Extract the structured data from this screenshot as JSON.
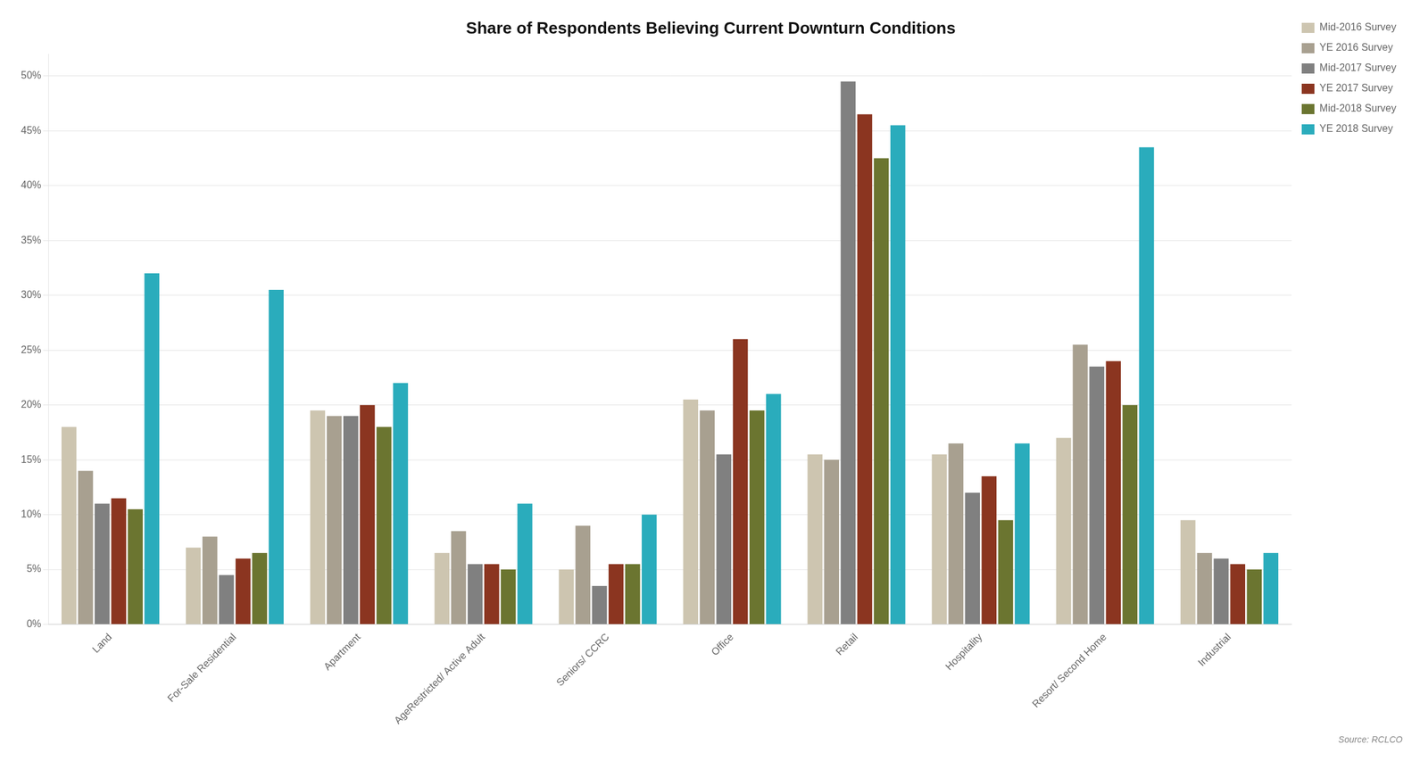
{
  "chart_data": {
    "type": "bar",
    "title": "Share of Respondents Believing Current Downturn Conditions",
    "categories": [
      "Land",
      "For-Sale Residential",
      "Apartment",
      "AgeRestricted/ Active Adult",
      "Seniors/ CCRC",
      "Office",
      "Retail",
      "Hospitality",
      "Resort/ Second Home",
      "Industrial"
    ],
    "series": [
      {
        "name": "Mid-2016 Survey",
        "color": "#cdc5b0",
        "values": [
          0.18,
          0.07,
          0.195,
          0.065,
          0.05,
          0.205,
          0.155,
          0.155,
          0.17,
          0.095
        ]
      },
      {
        "name": "YE 2016 Survey",
        "color": "#a8a090",
        "values": [
          0.14,
          0.08,
          0.19,
          0.085,
          0.09,
          0.195,
          0.15,
          0.165,
          0.255,
          0.065
        ]
      },
      {
        "name": "Mid-2017 Survey",
        "color": "#808080",
        "values": [
          0.11,
          0.045,
          0.19,
          0.055,
          0.035,
          0.155,
          0.495,
          0.12,
          0.235,
          0.06
        ]
      },
      {
        "name": "YE 2017 Survey",
        "color": "#8b3520",
        "values": [
          0.115,
          0.06,
          0.2,
          0.055,
          0.055,
          0.26,
          0.465,
          0.135,
          0.24,
          0.055
        ]
      },
      {
        "name": "Mid-2018 Survey",
        "color": "#6b7530",
        "values": [
          0.105,
          0.065,
          0.18,
          0.05,
          0.055,
          0.195,
          0.425,
          0.095,
          0.2,
          0.05
        ]
      },
      {
        "name": "YE 2018 Survey",
        "color": "#2aacbc",
        "values": [
          0.32,
          0.305,
          0.22,
          0.11,
          0.1,
          0.21,
          0.455,
          0.165,
          0.435,
          0.065
        ]
      }
    ],
    "ylim": [
      0,
      0.52
    ],
    "yticks": [
      {
        "value": 0.0,
        "label": "0%"
      },
      {
        "value": 0.05,
        "label": "5%"
      },
      {
        "value": 0.1,
        "label": "10%"
      },
      {
        "value": 0.15,
        "label": "15%"
      },
      {
        "value": 0.2,
        "label": "20%"
      },
      {
        "value": 0.25,
        "label": "25%"
      },
      {
        "value": 0.3,
        "label": "30%"
      },
      {
        "value": 0.35,
        "label": "35%"
      },
      {
        "value": 0.4,
        "label": "40%"
      },
      {
        "value": 0.45,
        "label": "45%"
      },
      {
        "value": 0.5,
        "label": "50%"
      }
    ],
    "grid": true,
    "legend": "upper right",
    "annotations": [
      "Source: RCLCO"
    ]
  }
}
